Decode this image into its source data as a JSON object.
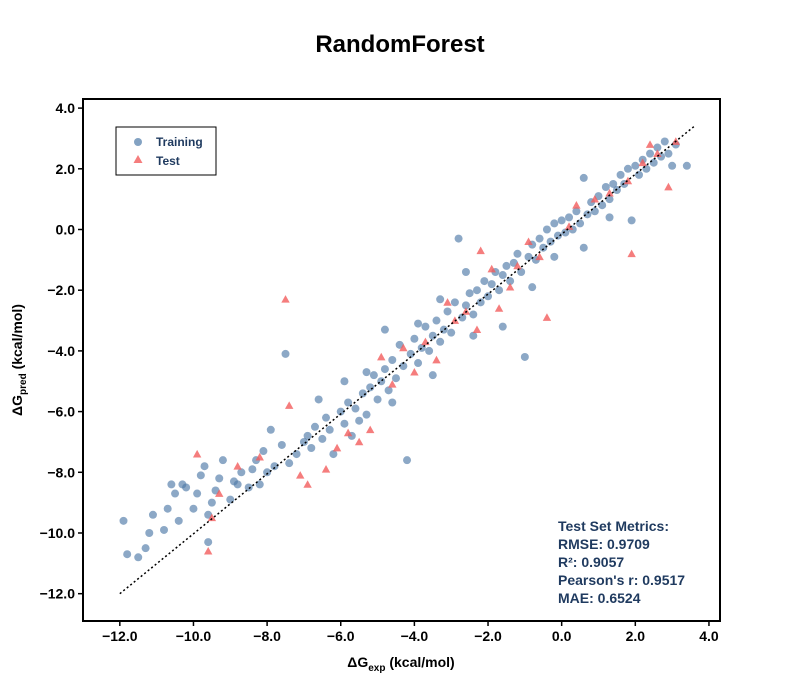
{
  "chart_data": {
    "type": "scatter",
    "title": "RandomForest",
    "xlabel_base": "ΔG",
    "xlabel_sub": "exp",
    "xlabel_unit": " (kcal/mol)",
    "ylabel_base": "ΔG",
    "ylabel_sub": "pred",
    "ylabel_unit": " (kcal/mol)",
    "xlim": [
      -13.0,
      4.3
    ],
    "ylim": [
      -12.9,
      4.3
    ],
    "x_ticks": [
      -12.0,
      -10.0,
      -8.0,
      -6.0,
      -4.0,
      -2.0,
      0.0,
      2.0,
      4.0
    ],
    "y_ticks": [
      -12.0,
      -10.0,
      -8.0,
      -6.0,
      -4.0,
      -2.0,
      0.0,
      2.0,
      4.0
    ],
    "x_tick_labels": [
      "−12.0",
      "−10.0",
      "−8.0",
      "−6.0",
      "−4.0",
      "−2.0",
      "0.0",
      "2.0",
      "4.0"
    ],
    "y_tick_labels": [
      "−12.0",
      "−10.0",
      "−8.0",
      "−6.0",
      "−4.0",
      "−2.0",
      "0.0",
      "2.0",
      "4.0"
    ],
    "grid": false,
    "legend_position": "top-left",
    "reference_line": {
      "style": "dotted",
      "color": "#000000",
      "x": [
        -12.0,
        3.6
      ],
      "y": [
        -12.0,
        3.4
      ]
    },
    "series": [
      {
        "name": "Training",
        "marker": "circle",
        "color": "#4e7aa8",
        "points": [
          [
            -11.9,
            -9.6
          ],
          [
            -11.8,
            -10.7
          ],
          [
            -11.5,
            -10.8
          ],
          [
            -11.3,
            -10.5
          ],
          [
            -11.2,
            -10.0
          ],
          [
            -11.1,
            -9.4
          ],
          [
            -10.8,
            -9.9
          ],
          [
            -10.7,
            -9.2
          ],
          [
            -10.5,
            -8.7
          ],
          [
            -10.4,
            -9.6
          ],
          [
            -10.3,
            -8.4
          ],
          [
            -10.2,
            -8.5
          ],
          [
            -10.0,
            -9.2
          ],
          [
            -9.9,
            -8.7
          ],
          [
            -9.8,
            -8.1
          ],
          [
            -9.7,
            -7.8
          ],
          [
            -9.6,
            -9.4
          ],
          [
            -9.5,
            -9.0
          ],
          [
            -9.4,
            -8.6
          ],
          [
            -9.3,
            -8.2
          ],
          [
            -9.2,
            -7.6
          ],
          [
            -9.0,
            -8.9
          ],
          [
            -8.9,
            -8.3
          ],
          [
            -8.8,
            -8.4
          ],
          [
            -8.7,
            -8.0
          ],
          [
            -8.5,
            -8.5
          ],
          [
            -8.4,
            -7.9
          ],
          [
            -8.3,
            -7.6
          ],
          [
            -8.2,
            -8.4
          ],
          [
            -8.1,
            -7.3
          ],
          [
            -8.0,
            -8.0
          ],
          [
            -7.8,
            -7.8
          ],
          [
            -7.6,
            -7.1
          ],
          [
            -7.5,
            -4.1
          ],
          [
            -7.4,
            -7.7
          ],
          [
            -7.2,
            -7.4
          ],
          [
            -7.0,
            -7.0
          ],
          [
            -6.9,
            -6.8
          ],
          [
            -6.8,
            -7.2
          ],
          [
            -6.7,
            -6.5
          ],
          [
            -6.5,
            -6.9
          ],
          [
            -6.4,
            -6.2
          ],
          [
            -6.3,
            -6.6
          ],
          [
            -6.2,
            -7.4
          ],
          [
            -6.0,
            -6.0
          ],
          [
            -5.9,
            -6.4
          ],
          [
            -5.8,
            -5.7
          ],
          [
            -5.7,
            -6.8
          ],
          [
            -5.6,
            -5.9
          ],
          [
            -5.5,
            -6.3
          ],
          [
            -5.4,
            -5.4
          ],
          [
            -5.3,
            -6.1
          ],
          [
            -5.2,
            -5.2
          ],
          [
            -5.1,
            -4.8
          ],
          [
            -5.0,
            -5.6
          ],
          [
            -4.9,
            -5.0
          ],
          [
            -4.8,
            -4.6
          ],
          [
            -4.7,
            -5.3
          ],
          [
            -4.6,
            -4.3
          ],
          [
            -4.5,
            -4.9
          ],
          [
            -4.4,
            -3.8
          ],
          [
            -4.3,
            -4.5
          ],
          [
            -4.2,
            -7.6
          ],
          [
            -4.1,
            -4.1
          ],
          [
            -4.0,
            -3.6
          ],
          [
            -3.9,
            -4.4
          ],
          [
            -3.8,
            -3.9
          ],
          [
            -3.7,
            -3.2
          ],
          [
            -3.6,
            -4.0
          ],
          [
            -3.5,
            -3.5
          ],
          [
            -3.4,
            -3.0
          ],
          [
            -3.3,
            -3.7
          ],
          [
            -3.2,
            -3.3
          ],
          [
            -3.1,
            -2.7
          ],
          [
            -3.0,
            -3.4
          ],
          [
            -2.9,
            -2.4
          ],
          [
            -2.8,
            -0.3
          ],
          [
            -2.7,
            -2.9
          ],
          [
            -2.6,
            -2.5
          ],
          [
            -2.5,
            -2.1
          ],
          [
            -2.4,
            -2.8
          ],
          [
            -2.3,
            -2.0
          ],
          [
            -2.2,
            -2.4
          ],
          [
            -2.1,
            -1.7
          ],
          [
            -2.0,
            -2.2
          ],
          [
            -1.9,
            -1.8
          ],
          [
            -1.8,
            -1.4
          ],
          [
            -1.7,
            -2.0
          ],
          [
            -1.6,
            -1.5
          ],
          [
            -1.5,
            -1.2
          ],
          [
            -1.4,
            -1.7
          ],
          [
            -1.3,
            -1.1
          ],
          [
            -1.2,
            -0.8
          ],
          [
            -1.1,
            -1.4
          ],
          [
            -1.0,
            -4.2
          ],
          [
            -0.9,
            -0.9
          ],
          [
            -0.8,
            -0.5
          ],
          [
            -0.7,
            -1.0
          ],
          [
            -0.6,
            -0.3
          ],
          [
            -0.5,
            -0.6
          ],
          [
            -0.4,
            0.0
          ],
          [
            -0.3,
            -0.4
          ],
          [
            -0.2,
            0.2
          ],
          [
            -0.1,
            -0.2
          ],
          [
            0.0,
            0.3
          ],
          [
            0.1,
            -0.1
          ],
          [
            0.2,
            0.4
          ],
          [
            0.3,
            0.0
          ],
          [
            0.4,
            0.6
          ],
          [
            0.5,
            0.2
          ],
          [
            0.6,
            1.7
          ],
          [
            0.7,
            0.5
          ],
          [
            0.8,
            0.9
          ],
          [
            0.9,
            0.6
          ],
          [
            1.0,
            1.1
          ],
          [
            1.1,
            0.8
          ],
          [
            1.2,
            1.4
          ],
          [
            1.3,
            1.0
          ],
          [
            1.4,
            1.5
          ],
          [
            1.5,
            1.3
          ],
          [
            1.6,
            1.8
          ],
          [
            1.7,
            1.5
          ],
          [
            1.8,
            2.0
          ],
          [
            1.9,
            0.3
          ],
          [
            2.0,
            2.1
          ],
          [
            2.1,
            1.8
          ],
          [
            2.2,
            2.3
          ],
          [
            2.3,
            2.0
          ],
          [
            2.4,
            2.5
          ],
          [
            2.5,
            2.2
          ],
          [
            2.6,
            2.7
          ],
          [
            2.7,
            2.4
          ],
          [
            2.8,
            2.9
          ],
          [
            2.9,
            2.5
          ],
          [
            3.0,
            2.1
          ],
          [
            3.1,
            2.8
          ],
          [
            3.4,
            2.1
          ],
          [
            -6.6,
            -5.6
          ],
          [
            -5.3,
            -4.7
          ],
          [
            -4.6,
            -5.7
          ],
          [
            -3.9,
            -3.1
          ],
          [
            -3.3,
            -2.3
          ],
          [
            -2.4,
            -3.5
          ],
          [
            -1.6,
            -3.2
          ],
          [
            -0.8,
            -1.9
          ],
          [
            -0.2,
            -0.9
          ],
          [
            0.6,
            -0.6
          ],
          [
            1.3,
            0.4
          ],
          [
            -7.9,
            -6.6
          ],
          [
            -9.6,
            -10.3
          ],
          [
            -10.6,
            -8.4
          ],
          [
            -5.9,
            -5.0
          ],
          [
            -4.8,
            -3.3
          ],
          [
            -3.5,
            -4.8
          ],
          [
            -2.6,
            -1.4
          ]
        ]
      },
      {
        "name": "Test",
        "marker": "triangle",
        "color": "#f25d5d",
        "points": [
          [
            -9.9,
            -7.4
          ],
          [
            -9.6,
            -10.6
          ],
          [
            -9.5,
            -9.5
          ],
          [
            -9.3,
            -8.7
          ],
          [
            -8.8,
            -7.8
          ],
          [
            -8.2,
            -7.5
          ],
          [
            -7.5,
            -2.3
          ],
          [
            -7.4,
            -5.8
          ],
          [
            -7.1,
            -8.1
          ],
          [
            -6.9,
            -8.4
          ],
          [
            -6.4,
            -7.9
          ],
          [
            -6.1,
            -7.2
          ],
          [
            -5.8,
            -6.7
          ],
          [
            -5.5,
            -7.0
          ],
          [
            -5.2,
            -6.6
          ],
          [
            -4.9,
            -4.2
          ],
          [
            -4.6,
            -5.1
          ],
          [
            -4.3,
            -3.9
          ],
          [
            -4.0,
            -4.7
          ],
          [
            -3.7,
            -3.7
          ],
          [
            -3.4,
            -4.3
          ],
          [
            -3.1,
            -2.4
          ],
          [
            -2.9,
            -3.0
          ],
          [
            -2.6,
            -2.7
          ],
          [
            -2.3,
            -3.3
          ],
          [
            -2.2,
            -0.7
          ],
          [
            -1.9,
            -1.3
          ],
          [
            -1.7,
            -2.6
          ],
          [
            -1.4,
            -1.9
          ],
          [
            -1.2,
            -1.2
          ],
          [
            -0.9,
            -0.4
          ],
          [
            -0.6,
            -0.9
          ],
          [
            -0.4,
            -2.9
          ],
          [
            0.2,
            0.1
          ],
          [
            0.4,
            0.8
          ],
          [
            0.9,
            1.0
          ],
          [
            1.3,
            1.2
          ],
          [
            1.8,
            1.6
          ],
          [
            1.9,
            -0.8
          ],
          [
            2.2,
            2.2
          ],
          [
            2.6,
            2.5
          ],
          [
            2.9,
            1.4
          ],
          [
            3.1,
            2.9
          ],
          [
            2.4,
            2.8
          ]
        ]
      }
    ],
    "metrics": {
      "heading": "Test Set Metrics:",
      "lines": [
        "RMSE: 0.9709",
        "R²: 0.9057",
        "Pearson's r: 0.9517",
        "MAE: 0.6524"
      ],
      "color": "#1f3a5f"
    }
  }
}
